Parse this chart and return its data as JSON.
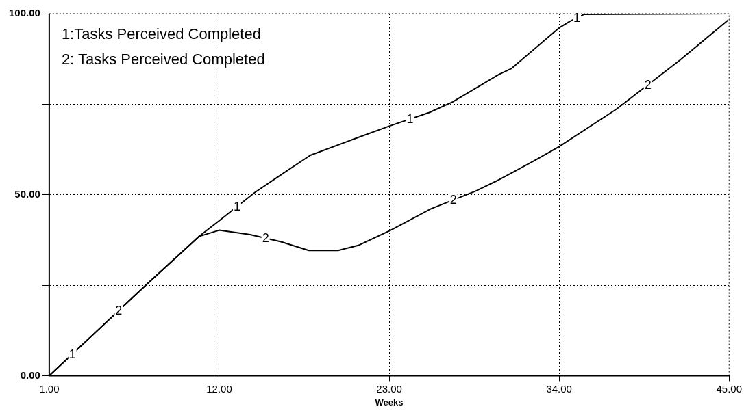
{
  "chart_data": {
    "type": "line",
    "xlabel": "Weeks",
    "xlim": [
      1,
      45
    ],
    "xticks": [
      {
        "value": 1,
        "label": "1.00"
      },
      {
        "value": 12,
        "label": "12.00"
      },
      {
        "value": 23,
        "label": "23.00"
      },
      {
        "value": 34,
        "label": "34.00"
      },
      {
        "value": 45,
        "label": "45.00"
      }
    ],
    "ylim": [
      0,
      100
    ],
    "yticks": [
      {
        "value": 0,
        "label": "0.00"
      },
      {
        "value": 25,
        "label": null
      },
      {
        "value": 50,
        "label": "50.00"
      },
      {
        "value": 75,
        "label": null
      },
      {
        "value": 100,
        "label": "100.00"
      }
    ],
    "grid": true,
    "marker": "none",
    "line_style": "solid",
    "annotations": [
      "1:Tasks Perceived Completed",
      "2: Tasks Perceived Completed"
    ],
    "series": [
      {
        "name": "1",
        "color": "#000000",
        "x": [
          1,
          4,
          7,
          10.7,
          12,
          14.3,
          16,
          17.9,
          20.6,
          23.1,
          25.6,
          27.1,
          30.1,
          30.9,
          34,
          34.7,
          35.6,
          45
        ],
        "values": [
          0,
          12,
          24,
          38.5,
          42.8,
          50.6,
          55.5,
          60.9,
          65.2,
          69.1,
          72.7,
          75.6,
          83.2,
          84.8,
          96.1,
          97.9,
          99.8,
          100
        ]
      },
      {
        "name": "2",
        "color": "#000000",
        "x": [
          1,
          4,
          7,
          10.7,
          12,
          14,
          16,
          17.8,
          19.7,
          21,
          23.1,
          25.7,
          28.6,
          30.1,
          32.4,
          34,
          37.7,
          41.8,
          44.9
        ],
        "values": [
          0,
          12,
          24,
          38.5,
          40.2,
          39,
          37,
          34.6,
          34.6,
          36,
          40.2,
          46.1,
          51,
          54.1,
          59.4,
          63.3,
          73.6,
          87.1,
          98.1
        ]
      }
    ]
  }
}
